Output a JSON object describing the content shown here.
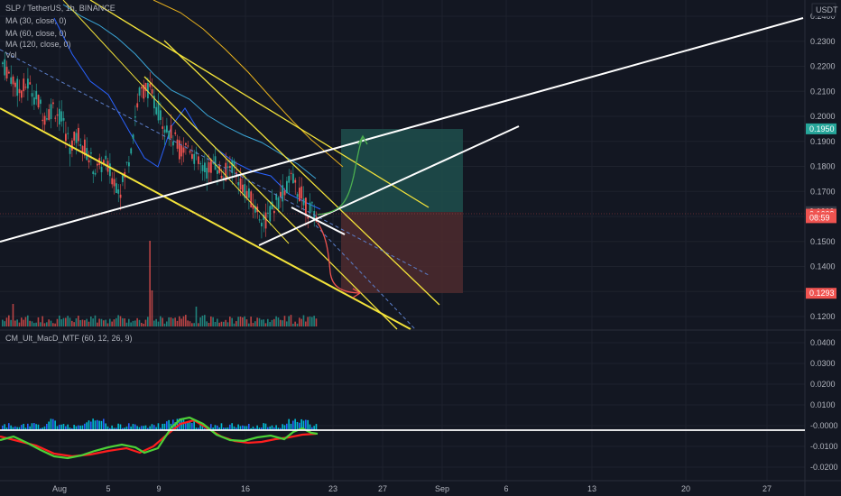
{
  "header": {
    "symbol_line": "SLP / TetherUS, 1h, BINANCE",
    "currency": "USDT"
  },
  "indicators": [
    {
      "label": "MA (30, close, 0)",
      "color": "#2962ff"
    },
    {
      "label": "MA (60, close, 0)",
      "color": "#3aa5d6"
    },
    {
      "label": "MA (120, close, 0)",
      "color": "#e8b11d"
    },
    {
      "label": "Vol",
      "color": "#b2b5be"
    }
  ],
  "macd_label": "CM_Ult_MacD_MTF (60, 12, 26, 9)",
  "colors": {
    "background": "#131722",
    "grid": "#1e222d",
    "up": "#26a69a",
    "down": "#ef5350",
    "trendline_yellow": "#f3e33a",
    "trendline_white": "#ffffff",
    "target_zone": "#1f4f4c",
    "stop_zone": "#4e2a2e"
  },
  "price_axis": {
    "ticks": [
      "0.2400",
      "0.2300",
      "0.2200",
      "0.2100",
      "0.2000",
      "0.1900",
      "0.1800",
      "0.1700",
      "0.1600",
      "0.1500",
      "0.1400",
      "0.1300",
      "0.1200"
    ],
    "min": 0.118,
    "max": 0.24
  },
  "macd_axis": {
    "ticks": [
      "0.0400",
      "0.0300",
      "0.0200",
      "0.0100",
      "-0.0000",
      "-0.0100",
      "-0.0200"
    ],
    "min": -0.025,
    "max": 0.043
  },
  "time_axis": {
    "ticks": [
      "Aug",
      "5",
      "9",
      "16",
      "23",
      "27",
      "Sep",
      "6",
      "13",
      "20",
      "27"
    ]
  },
  "price_labels": [
    {
      "value": 0.195,
      "text": "0.1950",
      "color": "#26a69a"
    },
    {
      "value": 0.1619,
      "text": "0.1619",
      "color": "#363a45"
    },
    {
      "value": 0.1609,
      "text": "0.1609",
      "color": "#ef5350"
    },
    {
      "value": 0.1595,
      "text": "08:59",
      "color": "#ef5350"
    },
    {
      "value": 0.1293,
      "text": "0.1293",
      "color": "#ef5350"
    }
  ],
  "chart_data": {
    "type": "candlestick",
    "title": "SLP / TetherUS, 1h, BINANCE",
    "ylim": [
      0.118,
      0.24
    ],
    "current_price": 0.1609,
    "entry_price": 0.1619,
    "target_price": 0.195,
    "stop_price": 0.1293,
    "price_path": [
      0.221,
      0.216,
      0.21,
      0.213,
      0.207,
      0.2,
      0.204,
      0.198,
      0.188,
      0.193,
      0.185,
      0.178,
      0.182,
      0.175,
      0.171,
      0.185,
      0.208,
      0.212,
      0.205,
      0.198,
      0.192,
      0.186,
      0.189,
      0.181,
      0.178,
      0.182,
      0.176,
      0.181,
      0.174,
      0.168,
      0.162,
      0.158,
      0.164,
      0.169,
      0.175,
      0.17,
      0.163,
      0.161
    ],
    "macd_range": [
      -0.025,
      0.043
    ]
  }
}
